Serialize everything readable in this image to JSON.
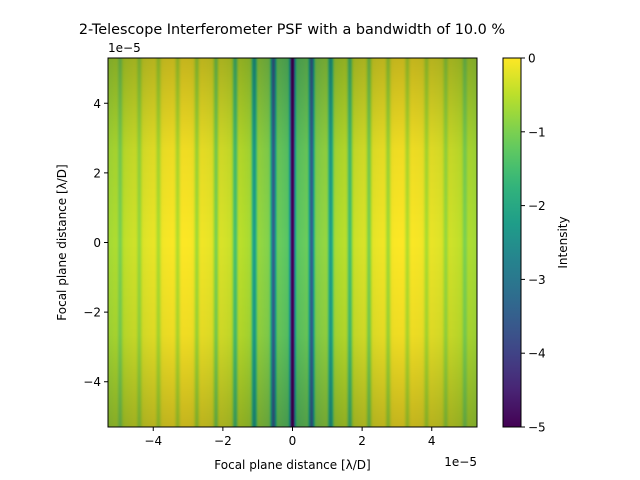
{
  "chart_data": {
    "type": "heatmap",
    "title": "2-Telescope Interferometer PSF  with a bandwidth of 10.0 %",
    "xlabel": "Focal plane distance [λ/D]",
    "ylabel": "Focal plane distance [λ/D]",
    "x_offset_label": "1e−5",
    "y_offset_label": "1e−5",
    "xlim": [
      -5.3,
      5.3
    ],
    "ylim": [
      -5.3,
      5.3
    ],
    "x_ticks": [
      {
        "value": -4,
        "label": "−4"
      },
      {
        "value": -2,
        "label": "−2"
      },
      {
        "value": 0,
        "label": "0"
      },
      {
        "value": 2,
        "label": "2"
      },
      {
        "value": 4,
        "label": "4"
      }
    ],
    "y_ticks": [
      {
        "value": -4,
        "label": "−4"
      },
      {
        "value": -2,
        "label": "−2"
      },
      {
        "value": 0,
        "label": "0"
      },
      {
        "value": 2,
        "label": "2"
      },
      {
        "value": 4,
        "label": "4"
      }
    ],
    "colorbar": {
      "label": "Intensity",
      "range": [
        -5,
        0
      ],
      "colormap": "viridis",
      "ticks": [
        {
          "value": 0,
          "label": "0"
        },
        {
          "value": -1,
          "label": "−1"
        },
        {
          "value": -2,
          "label": "−2"
        },
        {
          "value": -3,
          "label": "−3"
        },
        {
          "value": -4,
          "label": "−4"
        },
        {
          "value": -5,
          "label": "−5"
        }
      ]
    },
    "fringe_period": 0.55,
    "envelope_min": -1.4,
    "fringe_depth_center": -3.6,
    "grid": false
  }
}
